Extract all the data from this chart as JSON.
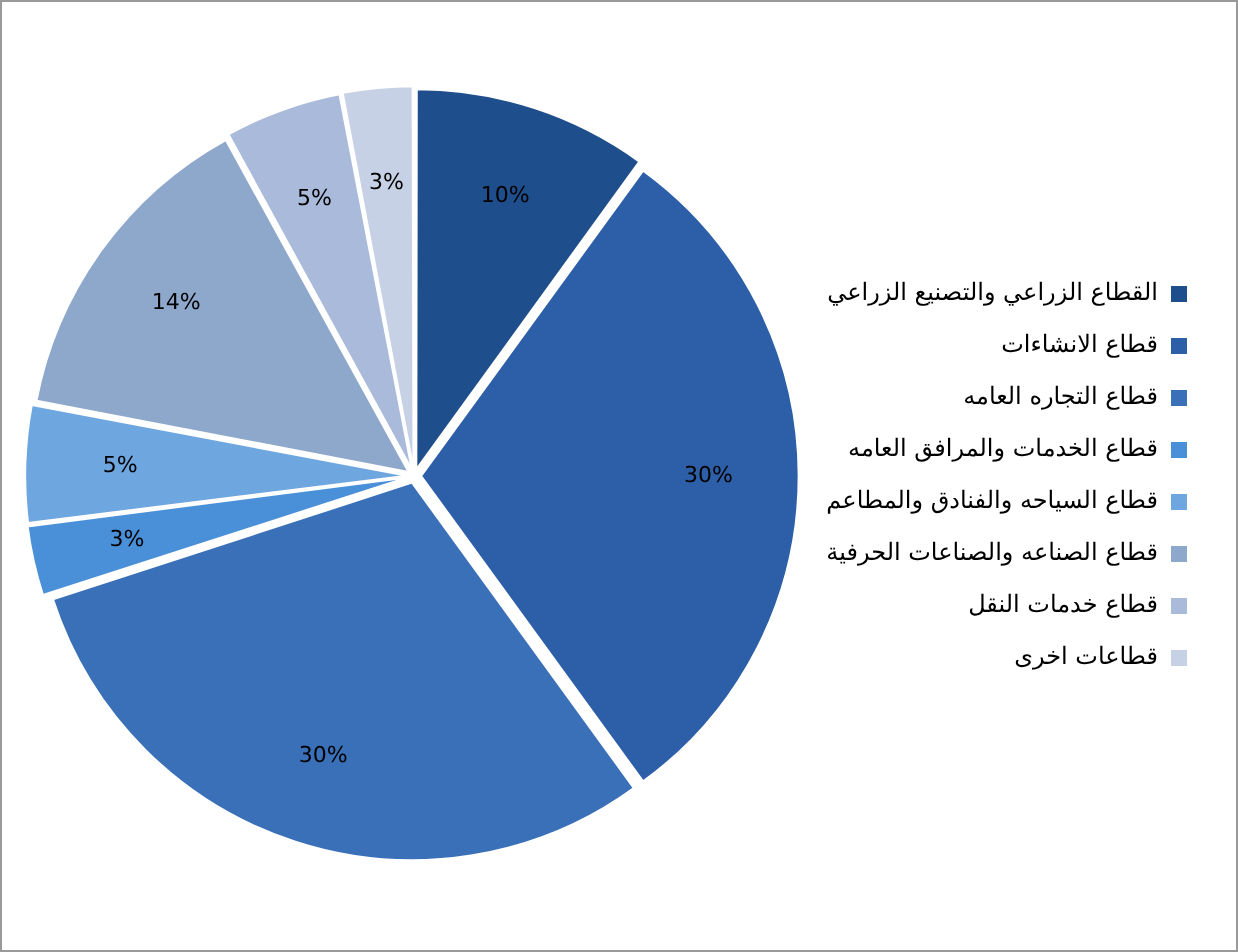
{
  "chart_data": {
    "type": "pie",
    "categories": [
      "القطاع الزراعي والتصنيع الزراعي",
      "قطاع الانشاءات",
      "قطاع التجاره العامه",
      "قطاع الخدمات والمرافق العامه",
      "قطاع السياحه والفنادق والمطاعم",
      "قطاع الصناعه والصناعات الحرفية",
      "قطاع خدمات النقل",
      "قطاعات اخرى"
    ],
    "values": [
      10,
      30,
      30,
      3,
      5,
      14,
      5,
      3
    ],
    "value_labels": [
      "10%",
      "30%",
      "30%",
      "3%",
      "5%",
      "14%",
      "5%",
      "3%"
    ],
    "colors": [
      "#1f4e8c",
      "#2c5fa8",
      "#3a70b8",
      "#4a90d9",
      "#6ea6e0",
      "#8ea8cc",
      "#a9badb",
      "#c6d1e6"
    ],
    "legend": "right"
  }
}
